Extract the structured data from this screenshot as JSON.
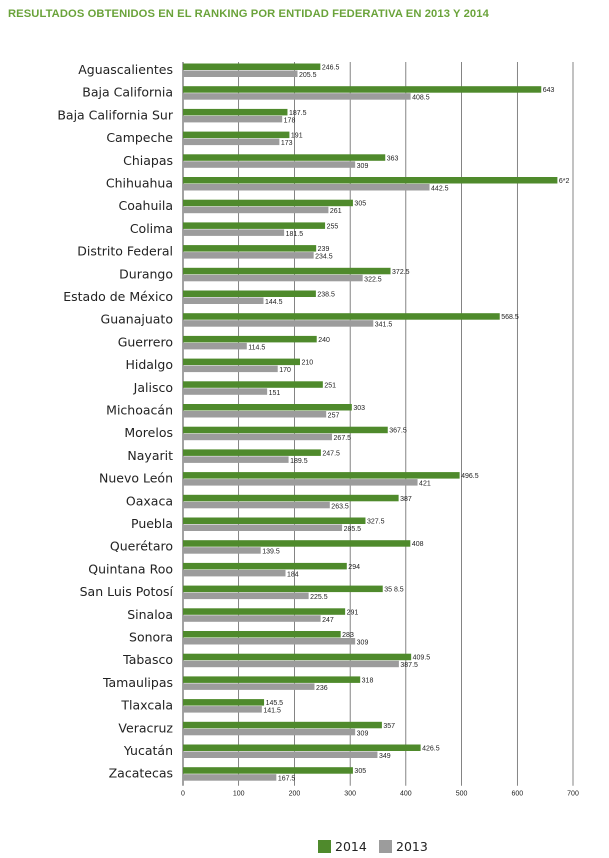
{
  "title": "RESULTADOS OBTENIDOS EN EL RANKING POR ENTIDAD FEDERATIVA EN 2013 Y 2014",
  "colors": {
    "title": "#6aa33a",
    "series_2014": "#4f8a2c",
    "series_2013": "#9c9c9c",
    "grid": "#333333"
  },
  "chart_data": {
    "type": "bar",
    "orientation": "horizontal",
    "title": "RESULTADOS OBTENIDOS EN EL RANKING POR ENTIDAD FEDERATIVA EN 2013 Y 2014",
    "xlabel": "",
    "ylabel": "",
    "xlim": [
      0,
      700
    ],
    "xticks": [
      0,
      100,
      200,
      300,
      400,
      500,
      600,
      700
    ],
    "grid": true,
    "legend_position": "bottom-right",
    "categories": [
      "Aguascalientes",
      "Baja California",
      "Baja California Sur",
      "Campeche",
      "Chiapas",
      "Chihuahua",
      "Coahuila",
      "Colima",
      "Distrito Federal",
      "Durango",
      "Estado de México",
      "Guanajuato",
      "Guerrero",
      "Hidalgo",
      "Jalisco",
      "Michoacán",
      "Morelos",
      "Nayarit",
      "Nuevo León",
      "Oaxaca",
      "Puebla",
      "Querétaro",
      "Quintana Roo",
      "San Luis Potosí",
      "Sinaloa",
      "Sonora",
      "Tabasco",
      "Tamaulipas",
      "Tlaxcala",
      "Veracruz",
      "Yucatán",
      "Zacatecas"
    ],
    "series": [
      {
        "name": "2014",
        "color": "#4f8a2c",
        "values": [
          246.5,
          643,
          187.5,
          191,
          363,
          672,
          305,
          255,
          239,
          372.5,
          238.5,
          568.5,
          240,
          210,
          251,
          303,
          367.5,
          247.5,
          496.5,
          387,
          327.5,
          408,
          294,
          358.5,
          291,
          283,
          409.5,
          318,
          145.5,
          357,
          426.5,
          305
        ],
        "labels": [
          "246.5",
          "643",
          "187.5",
          "191",
          "363",
          "6*2",
          "305",
          "255",
          "239",
          "372.5",
          "238.5",
          "568.5",
          "240",
          "210",
          "251",
          "303",
          "367.5",
          "247.5",
          "496.5",
          "387",
          "327.5",
          "408",
          "294",
          "35 8.5",
          "291",
          "283",
          "409.5",
          "318",
          "145.5",
          "357",
          "426.5",
          "305"
        ]
      },
      {
        "name": "2013",
        "color": "#9c9c9c",
        "values": [
          205.5,
          408.5,
          178,
          173,
          309,
          442.5,
          261,
          181.5,
          234.5,
          322.5,
          144.5,
          341.5,
          114.5,
          170,
          151,
          257,
          267.5,
          189.5,
          421,
          263.5,
          285.5,
          139.5,
          184,
          225.5,
          247,
          309,
          387.5,
          236,
          141.5,
          309,
          349,
          167.5
        ],
        "labels": [
          "205.5",
          "408.5",
          "178",
          "173",
          "309",
          "442.5",
          "261",
          "181.5",
          "234.5",
          "322.5",
          "144.5",
          "341.5",
          "114.5",
          "170",
          "151",
          "257",
          "267.5",
          "189.5",
          "421",
          "263.5",
          "285.5",
          "139.5",
          "184",
          "225.5",
          "247",
          "309",
          "387.5",
          "236",
          "141.5",
          "309",
          "349",
          "167.5"
        ]
      }
    ]
  }
}
